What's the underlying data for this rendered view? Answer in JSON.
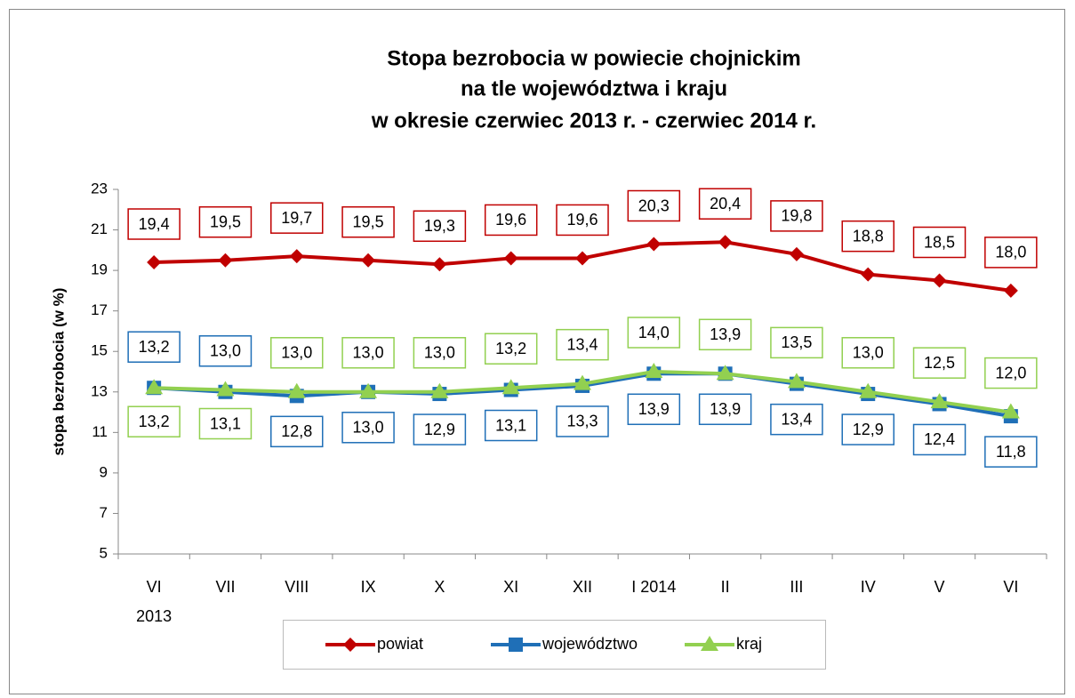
{
  "chart_data": {
    "type": "line",
    "title": [
      "Stopa bezrobocia w powiecie chojnickim",
      "na tle województwa i kraju",
      "w okresie czerwiec 2013 r. - czerwiec 2014 r."
    ],
    "y_label": "stopa bezrobocia (w %)",
    "categories": [
      "VI\n2013",
      "VII",
      "VIII",
      "IX",
      "X",
      "XI",
      "XII",
      "I 2014",
      "II",
      "III",
      "IV",
      "V",
      "VI"
    ],
    "ylim": [
      5,
      23
    ],
    "yticks": [
      5,
      7,
      9,
      11,
      13,
      15,
      17,
      19,
      21,
      23
    ],
    "grid": false,
    "series": [
      {
        "name": "powiat",
        "color": "#c00000",
        "marker": "diamond",
        "values": [
          19.4,
          19.5,
          19.7,
          19.5,
          19.3,
          19.6,
          19.6,
          20.3,
          20.4,
          19.8,
          18.8,
          18.5,
          18.0
        ],
        "value_labels": [
          "19,4",
          "19,5",
          "19,7",
          "19,5",
          "19,3",
          "19,6",
          "19,6",
          "20,3",
          "20,4",
          "19,8",
          "18,8",
          "18,5",
          "18,0"
        ]
      },
      {
        "name": "województwo",
        "color": "#1f6fb7",
        "marker": "square",
        "values": [
          13.2,
          13.0,
          12.8,
          13.0,
          12.9,
          13.1,
          13.3,
          13.9,
          13.9,
          13.4,
          12.9,
          12.4,
          11.8
        ],
        "value_labels": [
          "13,2",
          "13,0",
          "12,8",
          "13,0",
          "12,9",
          "13,1",
          "13,3",
          "13,9",
          "13,9",
          "13,4",
          "12,9",
          "12,4",
          "11,8"
        ]
      },
      {
        "name": "kraj",
        "color": "#92d050",
        "marker": "triangle",
        "values": [
          13.2,
          13.1,
          13.0,
          13.0,
          13.0,
          13.2,
          13.4,
          14.0,
          13.9,
          13.5,
          13.0,
          12.5,
          12.0
        ],
        "value_labels": [
          "13,2",
          "13,1",
          "13,0",
          "13,0",
          "13,0",
          "13,2",
          "13,4",
          "14,0",
          "13,9",
          "13,5",
          "13,0",
          "12,5",
          "12,0"
        ]
      }
    ]
  }
}
